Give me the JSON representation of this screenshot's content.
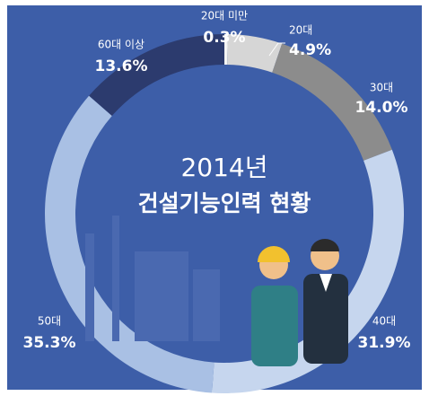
{
  "chart_data": {
    "type": "donut",
    "title": "2014년",
    "subtitle": "건설기능인력 현황",
    "categories": [
      "20대 미만",
      "20대",
      "30대",
      "40대",
      "50대",
      "60대 이상"
    ],
    "values": [
      0.3,
      4.9,
      14.0,
      31.9,
      35.3,
      13.6
    ],
    "value_labels": [
      "0.3%",
      "4.9%",
      "14.0%",
      "31.9%",
      "35.3%",
      "13.6%"
    ],
    "colors": [
      "#f4f4f4",
      "#d6d6d6",
      "#8c8c8c",
      "#c6d6ee",
      "#a9c0e4",
      "#2c3b6e"
    ]
  }
}
